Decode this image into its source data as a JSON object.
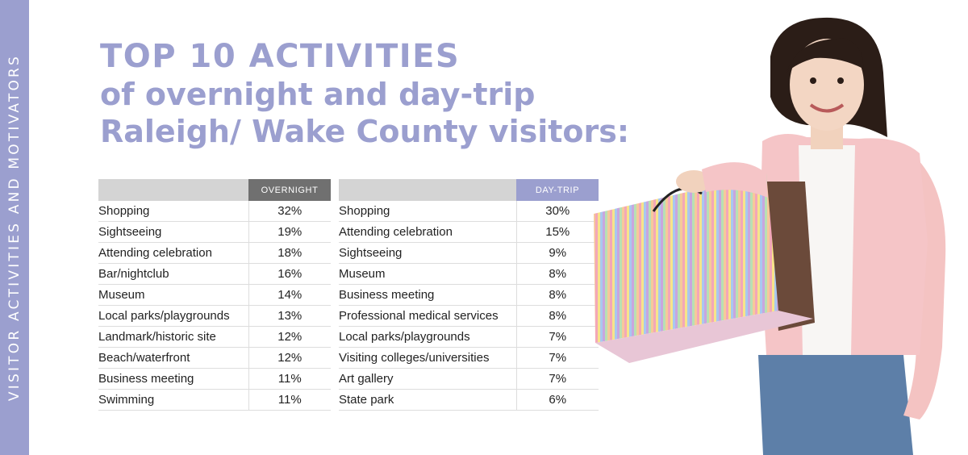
{
  "side_label": "VISITOR ACTIVITIES AND MOTIVATORS",
  "title": "TOP 10 ACTIVITIES",
  "subtitle": "of overnight and day-trip Raleigh/ Wake County visitors:",
  "colors": {
    "accent": "#9b9fcf",
    "overnight_header": "#707070",
    "blank_header": "#d4d4d4"
  },
  "chart_data": [
    {
      "type": "table",
      "columns": [
        "",
        "OVERNIGHT"
      ],
      "rows": [
        {
          "activity": "Shopping",
          "value": "32%"
        },
        {
          "activity": "Sightseeing",
          "value": "19%"
        },
        {
          "activity": "Attending celebration",
          "value": "18%"
        },
        {
          "activity": "Bar/nightclub",
          "value": "16%"
        },
        {
          "activity": "Museum",
          "value": "14%"
        },
        {
          "activity": "Local parks/playgrounds",
          "value": "13%"
        },
        {
          "activity": "Landmark/historic site",
          "value": "12%"
        },
        {
          "activity": "Beach/waterfront",
          "value": "12%"
        },
        {
          "activity": "Business meeting",
          "value": "11%"
        },
        {
          "activity": "Swimming",
          "value": "11%"
        }
      ]
    },
    {
      "type": "table",
      "columns": [
        "",
        "DAY-TRIP"
      ],
      "rows": [
        {
          "activity": "Shopping",
          "value": "30%"
        },
        {
          "activity": "Attending celebration",
          "value": "15%"
        },
        {
          "activity": "Sightseeing",
          "value": "9%"
        },
        {
          "activity": "Museum",
          "value": "8%"
        },
        {
          "activity": "Business meeting",
          "value": "8%"
        },
        {
          "activity": "Professional medical services",
          "value": "8%"
        },
        {
          "activity": "Local parks/playgrounds",
          "value": "7%"
        },
        {
          "activity": "Visiting colleges/universities",
          "value": "7%"
        },
        {
          "activity": "Art gallery",
          "value": "7%"
        },
        {
          "activity": "State park",
          "value": "6%"
        }
      ]
    }
  ]
}
